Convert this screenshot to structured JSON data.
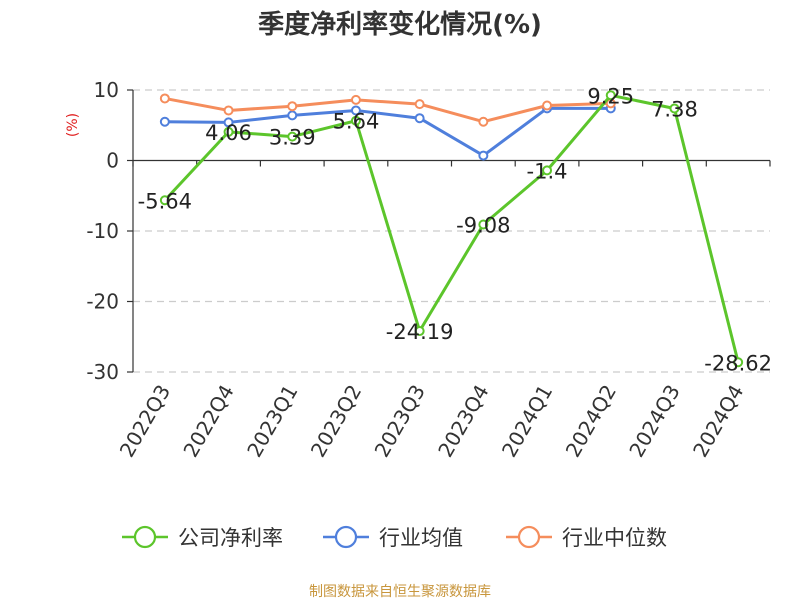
{
  "chart_data": {
    "type": "line",
    "title": "季度净利率变化情况(%)",
    "ylabel": "(%)",
    "ylim": [
      -30,
      10
    ],
    "yticks": [
      10,
      0,
      -10,
      -20,
      -30
    ],
    "grid": true,
    "legend_position": "bottom",
    "categories": [
      "2022Q3",
      "2022Q4",
      "2023Q1",
      "2023Q2",
      "2023Q3",
      "2023Q4",
      "2024Q1",
      "2024Q2",
      "2024Q3",
      "2024Q4"
    ],
    "series": [
      {
        "name": "公司净利率",
        "color": "#5cc52b",
        "values": [
          -5.64,
          4.06,
          3.39,
          5.64,
          -24.19,
          -9.08,
          -1.4,
          9.25,
          7.38,
          -28.62
        ],
        "labels": [
          "-5.64",
          "4.06",
          "3.39",
          "5.64",
          "-24.19",
          "-9.08",
          "-1.4",
          "9.25",
          "7.38",
          "-28.62"
        ]
      },
      {
        "name": "行业均值",
        "color": "#4f7fdc",
        "values": [
          5.5,
          5.4,
          6.4,
          7.1,
          6.0,
          0.7,
          7.4,
          7.4,
          null,
          null
        ]
      },
      {
        "name": "行业中位数",
        "color": "#f58d5c",
        "values": [
          8.8,
          7.1,
          7.7,
          8.6,
          8.0,
          5.5,
          7.8,
          8.1,
          null,
          null
        ]
      }
    ]
  },
  "colors": {
    "unit_label": "#e02020",
    "source_text": "#c8963c",
    "grid": "#cccccc",
    "axis": "#333333"
  },
  "source": "制图数据来自恒生聚源数据库"
}
